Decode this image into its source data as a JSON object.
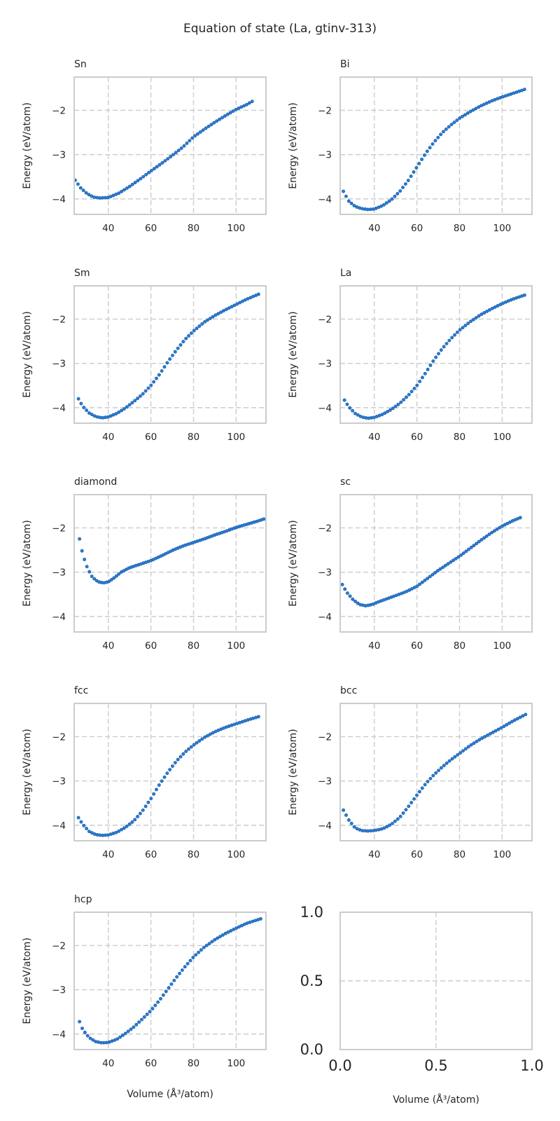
{
  "figure": {
    "title": "Equation of state (La, gtinv-313)",
    "xlabel": "Volume (Å³/atom)",
    "ylabel": "Energy (eV/atom)",
    "point_color": "#2b7bd3",
    "grid_color": "#cccccc",
    "frame_color": "#cccccc"
  },
  "chart_data": [
    {
      "type": "scatter",
      "title": "Sn",
      "xlim": [
        24,
        114
      ],
      "ylim": [
        -4.35,
        -1.25
      ],
      "xticks": [
        40,
        60,
        80,
        100
      ],
      "yticks": [
        -4,
        -3,
        -2
      ],
      "xlabel": "",
      "ylabel": "Energy (eV/atom)",
      "curve": [
        [
          24.5,
          -3.58
        ],
        [
          27,
          -3.75
        ],
        [
          30,
          -3.88
        ],
        [
          33,
          -3.96
        ],
        [
          36,
          -3.98
        ],
        [
          40,
          -3.97
        ],
        [
          45,
          -3.87
        ],
        [
          50,
          -3.72
        ],
        [
          55,
          -3.55
        ],
        [
          60,
          -3.37
        ],
        [
          65,
          -3.2
        ],
        [
          70,
          -3.02
        ],
        [
          75,
          -2.83
        ],
        [
          80,
          -2.6
        ],
        [
          85,
          -2.43
        ],
        [
          90,
          -2.27
        ],
        [
          95,
          -2.12
        ],
        [
          100,
          -1.98
        ],
        [
          105,
          -1.87
        ],
        [
          107.5,
          -1.8
        ]
      ],
      "x_range": [
        24.5,
        107.5
      ],
      "n_points": 66
    },
    {
      "type": "scatter",
      "title": "Bi",
      "xlim": [
        24,
        114
      ],
      "ylim": [
        -4.35,
        -1.25
      ],
      "xticks": [
        40,
        60,
        80,
        100
      ],
      "yticks": [
        -4,
        -3,
        -2
      ],
      "xlabel": "",
      "ylabel": "Energy (eV/atom)",
      "curve": [
        [
          25.5,
          -3.83
        ],
        [
          28,
          -4.05
        ],
        [
          31,
          -4.17
        ],
        [
          34,
          -4.22
        ],
        [
          37,
          -4.24
        ],
        [
          40,
          -4.23
        ],
        [
          44,
          -4.15
        ],
        [
          48,
          -4.02
        ],
        [
          52,
          -3.83
        ],
        [
          56,
          -3.58
        ],
        [
          60,
          -3.28
        ],
        [
          64,
          -2.98
        ],
        [
          68,
          -2.72
        ],
        [
          72,
          -2.5
        ],
        [
          76,
          -2.33
        ],
        [
          80,
          -2.18
        ],
        [
          85,
          -2.03
        ],
        [
          90,
          -1.9
        ],
        [
          95,
          -1.79
        ],
        [
          100,
          -1.7
        ],
        [
          105,
          -1.62
        ],
        [
          110.5,
          -1.53
        ]
      ],
      "x_range": [
        25.5,
        110.5
      ],
      "n_points": 68
    },
    {
      "type": "scatter",
      "title": "Sm",
      "xlim": [
        24,
        114
      ],
      "ylim": [
        -4.35,
        -1.25
      ],
      "xticks": [
        40,
        60,
        80,
        100
      ],
      "yticks": [
        -4,
        -3,
        -2
      ],
      "xlabel": "",
      "ylabel": "Energy (eV/atom)",
      "curve": [
        [
          26,
          -3.8
        ],
        [
          28,
          -3.97
        ],
        [
          31,
          -4.12
        ],
        [
          34,
          -4.2
        ],
        [
          37,
          -4.23
        ],
        [
          40,
          -4.21
        ],
        [
          44,
          -4.13
        ],
        [
          48,
          -4.01
        ],
        [
          52,
          -3.86
        ],
        [
          56,
          -3.7
        ],
        [
          60,
          -3.5
        ],
        [
          64,
          -3.25
        ],
        [
          68,
          -2.96
        ],
        [
          72,
          -2.7
        ],
        [
          76,
          -2.46
        ],
        [
          80,
          -2.27
        ],
        [
          85,
          -2.07
        ],
        [
          90,
          -1.92
        ],
        [
          95,
          -1.79
        ],
        [
          100,
          -1.67
        ],
        [
          105,
          -1.55
        ],
        [
          110.5,
          -1.44
        ]
      ],
      "x_range": [
        26,
        110.5
      ],
      "n_points": 68
    },
    {
      "type": "scatter",
      "title": "La",
      "xlim": [
        24,
        114
      ],
      "ylim": [
        -4.35,
        -1.25
      ],
      "xticks": [
        40,
        60,
        80,
        100
      ],
      "yticks": [
        -4,
        -3,
        -2
      ],
      "xlabel": "",
      "ylabel": "Energy (eV/atom)",
      "curve": [
        [
          26,
          -3.83
        ],
        [
          28,
          -3.98
        ],
        [
          31,
          -4.13
        ],
        [
          34,
          -4.21
        ],
        [
          37,
          -4.24
        ],
        [
          40,
          -4.22
        ],
        [
          44,
          -4.15
        ],
        [
          48,
          -4.04
        ],
        [
          52,
          -3.9
        ],
        [
          56,
          -3.72
        ],
        [
          60,
          -3.5
        ],
        [
          64,
          -3.22
        ],
        [
          68,
          -2.92
        ],
        [
          72,
          -2.66
        ],
        [
          76,
          -2.44
        ],
        [
          80,
          -2.25
        ],
        [
          85,
          -2.06
        ],
        [
          90,
          -1.9
        ],
        [
          95,
          -1.77
        ],
        [
          100,
          -1.65
        ],
        [
          105,
          -1.55
        ],
        [
          110.5,
          -1.46
        ]
      ],
      "x_range": [
        26,
        110.5
      ],
      "n_points": 68
    },
    {
      "type": "scatter",
      "title": "diamond",
      "xlim": [
        24,
        114
      ],
      "ylim": [
        -4.35,
        -1.25
      ],
      "xticks": [
        40,
        60,
        80,
        100
      ],
      "yticks": [
        -4,
        -3,
        -2
      ],
      "xlabel": "",
      "ylabel": "Energy (eV/atom)",
      "curve": [
        [
          26.5,
          -2.25
        ],
        [
          28,
          -2.6
        ],
        [
          30,
          -2.88
        ],
        [
          32,
          -3.08
        ],
        [
          34,
          -3.18
        ],
        [
          36,
          -3.23
        ],
        [
          38,
          -3.24
        ],
        [
          40,
          -3.22
        ],
        [
          43,
          -3.12
        ],
        [
          46,
          -3.0
        ],
        [
          50,
          -2.9
        ],
        [
          55,
          -2.82
        ],
        [
          60,
          -2.74
        ],
        [
          65,
          -2.63
        ],
        [
          70,
          -2.51
        ],
        [
          75,
          -2.41
        ],
        [
          80,
          -2.33
        ],
        [
          85,
          -2.25
        ],
        [
          90,
          -2.16
        ],
        [
          95,
          -2.08
        ],
        [
          100,
          -1.99
        ],
        [
          105,
          -1.92
        ],
        [
          110,
          -1.85
        ],
        [
          113,
          -1.8
        ]
      ],
      "x_range": [
        26.5,
        113
      ],
      "n_points": 76
    },
    {
      "type": "scatter",
      "title": "sc",
      "xlim": [
        24,
        114
      ],
      "ylim": [
        -4.35,
        -1.25
      ],
      "xticks": [
        40,
        60,
        80,
        100
      ],
      "yticks": [
        -4,
        -3,
        -2
      ],
      "xlabel": "",
      "ylabel": "Energy (eV/atom)",
      "curve": [
        [
          25,
          -3.28
        ],
        [
          27,
          -3.45
        ],
        [
          30,
          -3.62
        ],
        [
          33,
          -3.73
        ],
        [
          36,
          -3.76
        ],
        [
          39,
          -3.73
        ],
        [
          42,
          -3.67
        ],
        [
          46,
          -3.6
        ],
        [
          50,
          -3.53
        ],
        [
          55,
          -3.44
        ],
        [
          60,
          -3.32
        ],
        [
          65,
          -3.14
        ],
        [
          70,
          -2.96
        ],
        [
          75,
          -2.8
        ],
        [
          80,
          -2.64
        ],
        [
          85,
          -2.46
        ],
        [
          90,
          -2.28
        ],
        [
          95,
          -2.11
        ],
        [
          100,
          -1.96
        ],
        [
          105,
          -1.84
        ],
        [
          108.5,
          -1.77
        ]
      ],
      "x_range": [
        25,
        108.5
      ],
      "n_points": 70
    },
    {
      "type": "scatter",
      "title": "fcc",
      "xlim": [
        24,
        114
      ],
      "ylim": [
        -4.35,
        -1.25
      ],
      "xticks": [
        40,
        60,
        80,
        100
      ],
      "yticks": [
        -4,
        -3,
        -2
      ],
      "xlabel": "",
      "ylabel": "Energy (eV/atom)",
      "curve": [
        [
          26,
          -3.83
        ],
        [
          28,
          -3.98
        ],
        [
          31,
          -4.14
        ],
        [
          34,
          -4.21
        ],
        [
          37,
          -4.23
        ],
        [
          40,
          -4.22
        ],
        [
          44,
          -4.16
        ],
        [
          48,
          -4.05
        ],
        [
          52,
          -3.9
        ],
        [
          56,
          -3.68
        ],
        [
          60,
          -3.4
        ],
        [
          64,
          -3.08
        ],
        [
          68,
          -2.8
        ],
        [
          72,
          -2.55
        ],
        [
          76,
          -2.35
        ],
        [
          80,
          -2.19
        ],
        [
          85,
          -2.02
        ],
        [
          90,
          -1.89
        ],
        [
          95,
          -1.79
        ],
        [
          100,
          -1.71
        ],
        [
          105,
          -1.63
        ],
        [
          110.5,
          -1.55
        ]
      ],
      "x_range": [
        26,
        110.5
      ],
      "n_points": 68
    },
    {
      "type": "scatter",
      "title": "bcc",
      "xlim": [
        24,
        114
      ],
      "ylim": [
        -4.35,
        -1.25
      ],
      "xticks": [
        40,
        60,
        80,
        100
      ],
      "yticks": [
        -4,
        -3,
        -2
      ],
      "xlabel": "",
      "ylabel": "Energy (eV/atom)",
      "curve": [
        [
          25.5,
          -3.66
        ],
        [
          28,
          -3.88
        ],
        [
          31,
          -4.06
        ],
        [
          34,
          -4.12
        ],
        [
          37,
          -4.13
        ],
        [
          40,
          -4.12
        ],
        [
          44,
          -4.08
        ],
        [
          48,
          -3.98
        ],
        [
          52,
          -3.82
        ],
        [
          56,
          -3.58
        ],
        [
          60,
          -3.32
        ],
        [
          64,
          -3.07
        ],
        [
          68,
          -2.86
        ],
        [
          72,
          -2.68
        ],
        [
          76,
          -2.52
        ],
        [
          80,
          -2.38
        ],
        [
          85,
          -2.2
        ],
        [
          90,
          -2.05
        ],
        [
          95,
          -1.92
        ],
        [
          100,
          -1.79
        ],
        [
          105,
          -1.65
        ],
        [
          111,
          -1.5
        ]
      ],
      "x_range": [
        25.5,
        111
      ],
      "n_points": 68
    },
    {
      "type": "scatter",
      "title": "hcp",
      "xlim": [
        24,
        114
      ],
      "ylim": [
        -4.35,
        -1.25
      ],
      "xticks": [
        40,
        60,
        80,
        100
      ],
      "yticks": [
        -4,
        -3,
        -2
      ],
      "xlabel": "Volume (Å³/atom)",
      "ylabel": "Energy (eV/atom)",
      "curve": [
        [
          26.5,
          -3.72
        ],
        [
          28,
          -3.9
        ],
        [
          31,
          -4.08
        ],
        [
          34,
          -4.17
        ],
        [
          37,
          -4.2
        ],
        [
          40,
          -4.19
        ],
        [
          44,
          -4.12
        ],
        [
          48,
          -3.99
        ],
        [
          52,
          -3.84
        ],
        [
          56,
          -3.66
        ],
        [
          60,
          -3.47
        ],
        [
          64,
          -3.24
        ],
        [
          68,
          -2.98
        ],
        [
          72,
          -2.72
        ],
        [
          76,
          -2.48
        ],
        [
          80,
          -2.26
        ],
        [
          85,
          -2.04
        ],
        [
          90,
          -1.87
        ],
        [
          95,
          -1.73
        ],
        [
          100,
          -1.61
        ],
        [
          105,
          -1.5
        ],
        [
          111.5,
          -1.4
        ]
      ],
      "x_range": [
        26.5,
        111.5
      ],
      "n_points": 68
    },
    {
      "type": "empty",
      "title": "",
      "xlim": [
        0,
        1
      ],
      "ylim": [
        0,
        1
      ],
      "xticks": [
        0.0,
        0.5,
        1.0
      ],
      "yticks": [
        0.0,
        0.5,
        1.0
      ],
      "xticklabels": [
        "0.0",
        "0.5",
        "1.0"
      ],
      "yticklabels": [
        "0.0",
        "0.5",
        "1.0"
      ],
      "xlabel": "Volume (Å³/atom)",
      "ylabel": ""
    }
  ]
}
